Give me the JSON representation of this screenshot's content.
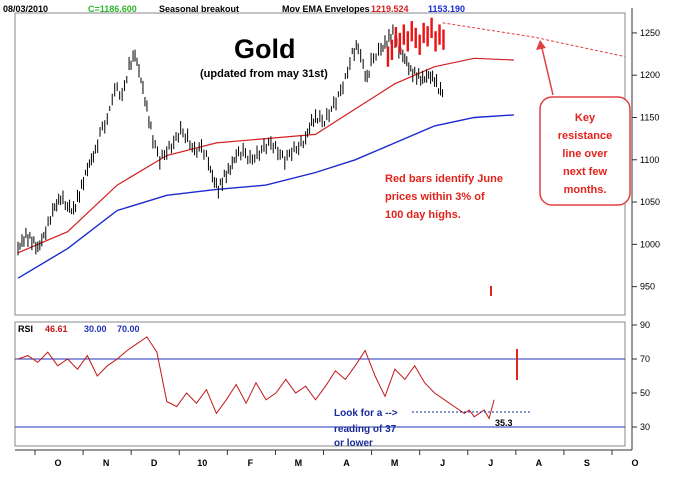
{
  "header": {
    "date": "08/03/2010",
    "close": "C=1186.600",
    "study": "Seasonal breakout",
    "indicator": "Mov EMA Envelopes",
    "upper": "1219.524",
    "lower": "1153.190"
  },
  "title": "Gold",
  "subtitle": "(updated from may 31st)",
  "annotations": {
    "red_bars": [
      "Red bars identify June",
      "prices within 3% of",
      "100 day highs."
    ],
    "callout": [
      "Key",
      "resistance",
      "line over",
      "next few",
      "months."
    ],
    "rsi_note": [
      "Look for a -->",
      "reading of 37",
      "or lower"
    ],
    "rsi_value": "35.3"
  },
  "rsi_header": {
    "label": "RSI",
    "value": "46.61",
    "low": "30.00",
    "high": "70.00"
  },
  "colors": {
    "ema": "#d42020",
    "lower_env": "#1a2ad0",
    "rsi": "#c01818",
    "resistance": "#e04040",
    "rsi_band": "#2233bb"
  },
  "chart_data": {
    "type": "line",
    "x_labels": [
      "O",
      "N",
      "D",
      "10",
      "F",
      "M",
      "A",
      "M",
      "J",
      "J",
      "A",
      "S",
      "O"
    ],
    "price_axis": {
      "ylim": [
        920,
        1270
      ],
      "ticks": [
        950,
        1000,
        1050,
        1100,
        1150,
        1200,
        1250
      ]
    },
    "price": [
      [
        0,
        995
      ],
      [
        8,
        1010
      ],
      [
        14,
        1005
      ],
      [
        20,
        995
      ],
      [
        28,
        1015
      ],
      [
        35,
        1040
      ],
      [
        43,
        1055
      ],
      [
        50,
        1045
      ],
      [
        56,
        1040
      ],
      [
        62,
        1060
      ],
      [
        70,
        1090
      ],
      [
        78,
        1110
      ],
      [
        85,
        1140
      ],
      [
        90,
        1145
      ],
      [
        95,
        1175
      ],
      [
        100,
        1185
      ],
      [
        105,
        1175
      ],
      [
        112,
        1210
      ],
      [
        118,
        1225
      ],
      [
        124,
        1195
      ],
      [
        130,
        1160
      ],
      [
        136,
        1125
      ],
      [
        143,
        1100
      ],
      [
        150,
        1110
      ],
      [
        157,
        1120
      ],
      [
        164,
        1135
      ],
      [
        171,
        1125
      ],
      [
        178,
        1110
      ],
      [
        185,
        1115
      ],
      [
        190,
        1105
      ],
      [
        196,
        1080
      ],
      [
        202,
        1065
      ],
      [
        208,
        1080
      ],
      [
        214,
        1090
      ],
      [
        220,
        1105
      ],
      [
        227,
        1110
      ],
      [
        234,
        1100
      ],
      [
        241,
        1105
      ],
      [
        248,
        1115
      ],
      [
        255,
        1120
      ],
      [
        262,
        1110
      ],
      [
        269,
        1100
      ],
      [
        276,
        1110
      ],
      [
        283,
        1115
      ],
      [
        290,
        1125
      ],
      [
        296,
        1145
      ],
      [
        302,
        1150
      ],
      [
        309,
        1145
      ],
      [
        316,
        1160
      ],
      [
        323,
        1175
      ],
      [
        330,
        1195
      ],
      [
        337,
        1225
      ],
      [
        343,
        1235
      ],
      [
        348,
        1210
      ],
      [
        352,
        1195
      ],
      [
        356,
        1215
      ],
      [
        361,
        1225
      ],
      [
        366,
        1230
      ],
      [
        372,
        1240
      ],
      [
        378,
        1250
      ],
      [
        384,
        1230
      ],
      [
        390,
        1220
      ],
      [
        396,
        1205
      ],
      [
        402,
        1200
      ],
      [
        408,
        1195
      ],
      [
        414,
        1200
      ],
      [
        420,
        1195
      ],
      [
        426,
        1180
      ],
      [
        430,
        1185
      ]
    ],
    "june_price": [
      [
        373,
        1222
      ],
      [
        377,
        1230
      ],
      [
        381,
        1245
      ],
      [
        385,
        1238
      ],
      [
        389,
        1248
      ],
      [
        393,
        1240
      ],
      [
        397,
        1252
      ],
      [
        401,
        1244
      ],
      [
        405,
        1236
      ],
      [
        409,
        1250
      ],
      [
        413,
        1246
      ],
      [
        417,
        1256
      ],
      [
        421,
        1240
      ],
      [
        425,
        1248
      ],
      [
        429,
        1242
      ]
    ],
    "ema": [
      [
        0,
        990
      ],
      [
        50,
        1015
      ],
      [
        100,
        1070
      ],
      [
        150,
        1105
      ],
      [
        200,
        1120
      ],
      [
        250,
        1125
      ],
      [
        300,
        1130
      ],
      [
        340,
        1160
      ],
      [
        380,
        1190
      ],
      [
        420,
        1210
      ],
      [
        460,
        1220
      ],
      [
        500,
        1218
      ]
    ],
    "lower_envelope": [
      [
        0,
        960
      ],
      [
        50,
        995
      ],
      [
        100,
        1040
      ],
      [
        150,
        1058
      ],
      [
        200,
        1065
      ],
      [
        250,
        1070
      ],
      [
        300,
        1085
      ],
      [
        340,
        1100
      ],
      [
        380,
        1120
      ],
      [
        420,
        1140
      ],
      [
        460,
        1150
      ],
      [
        500,
        1153
      ]
    ],
    "resistance": [
      [
        428,
        1262
      ],
      [
        520,
        1245
      ],
      [
        612,
        1222
      ]
    ],
    "rsi_axis": {
      "ylim": [
        20,
        90
      ],
      "ticks": [
        30,
        50,
        70,
        90
      ],
      "bands": [
        30,
        70
      ]
    },
    "rsi": [
      [
        0,
        70
      ],
      [
        10,
        72
      ],
      [
        20,
        68
      ],
      [
        30,
        74
      ],
      [
        40,
        66
      ],
      [
        50,
        70
      ],
      [
        60,
        64
      ],
      [
        70,
        72
      ],
      [
        80,
        60
      ],
      [
        90,
        66
      ],
      [
        100,
        70
      ],
      [
        110,
        75
      ],
      [
        120,
        79
      ],
      [
        130,
        83
      ],
      [
        140,
        74
      ],
      [
        150,
        45
      ],
      [
        160,
        42
      ],
      [
        170,
        50
      ],
      [
        180,
        44
      ],
      [
        190,
        52
      ],
      [
        200,
        38
      ],
      [
        210,
        46
      ],
      [
        220,
        55
      ],
      [
        230,
        44
      ],
      [
        240,
        56
      ],
      [
        250,
        46
      ],
      [
        260,
        50
      ],
      [
        270,
        58
      ],
      [
        280,
        50
      ],
      [
        290,
        54
      ],
      [
        300,
        46
      ],
      [
        310,
        54
      ],
      [
        320,
        63
      ],
      [
        330,
        58
      ],
      [
        340,
        66
      ],
      [
        350,
        75
      ],
      [
        360,
        60
      ],
      [
        370,
        48
      ],
      [
        380,
        64
      ],
      [
        390,
        58
      ],
      [
        400,
        66
      ],
      [
        410,
        56
      ],
      [
        420,
        50
      ],
      [
        430,
        46
      ],
      [
        440,
        42
      ],
      [
        450,
        38
      ],
      [
        455,
        40
      ],
      [
        460,
        36
      ],
      [
        465,
        38
      ],
      [
        470,
        40
      ],
      [
        475,
        35
      ],
      [
        480,
        46
      ]
    ]
  }
}
